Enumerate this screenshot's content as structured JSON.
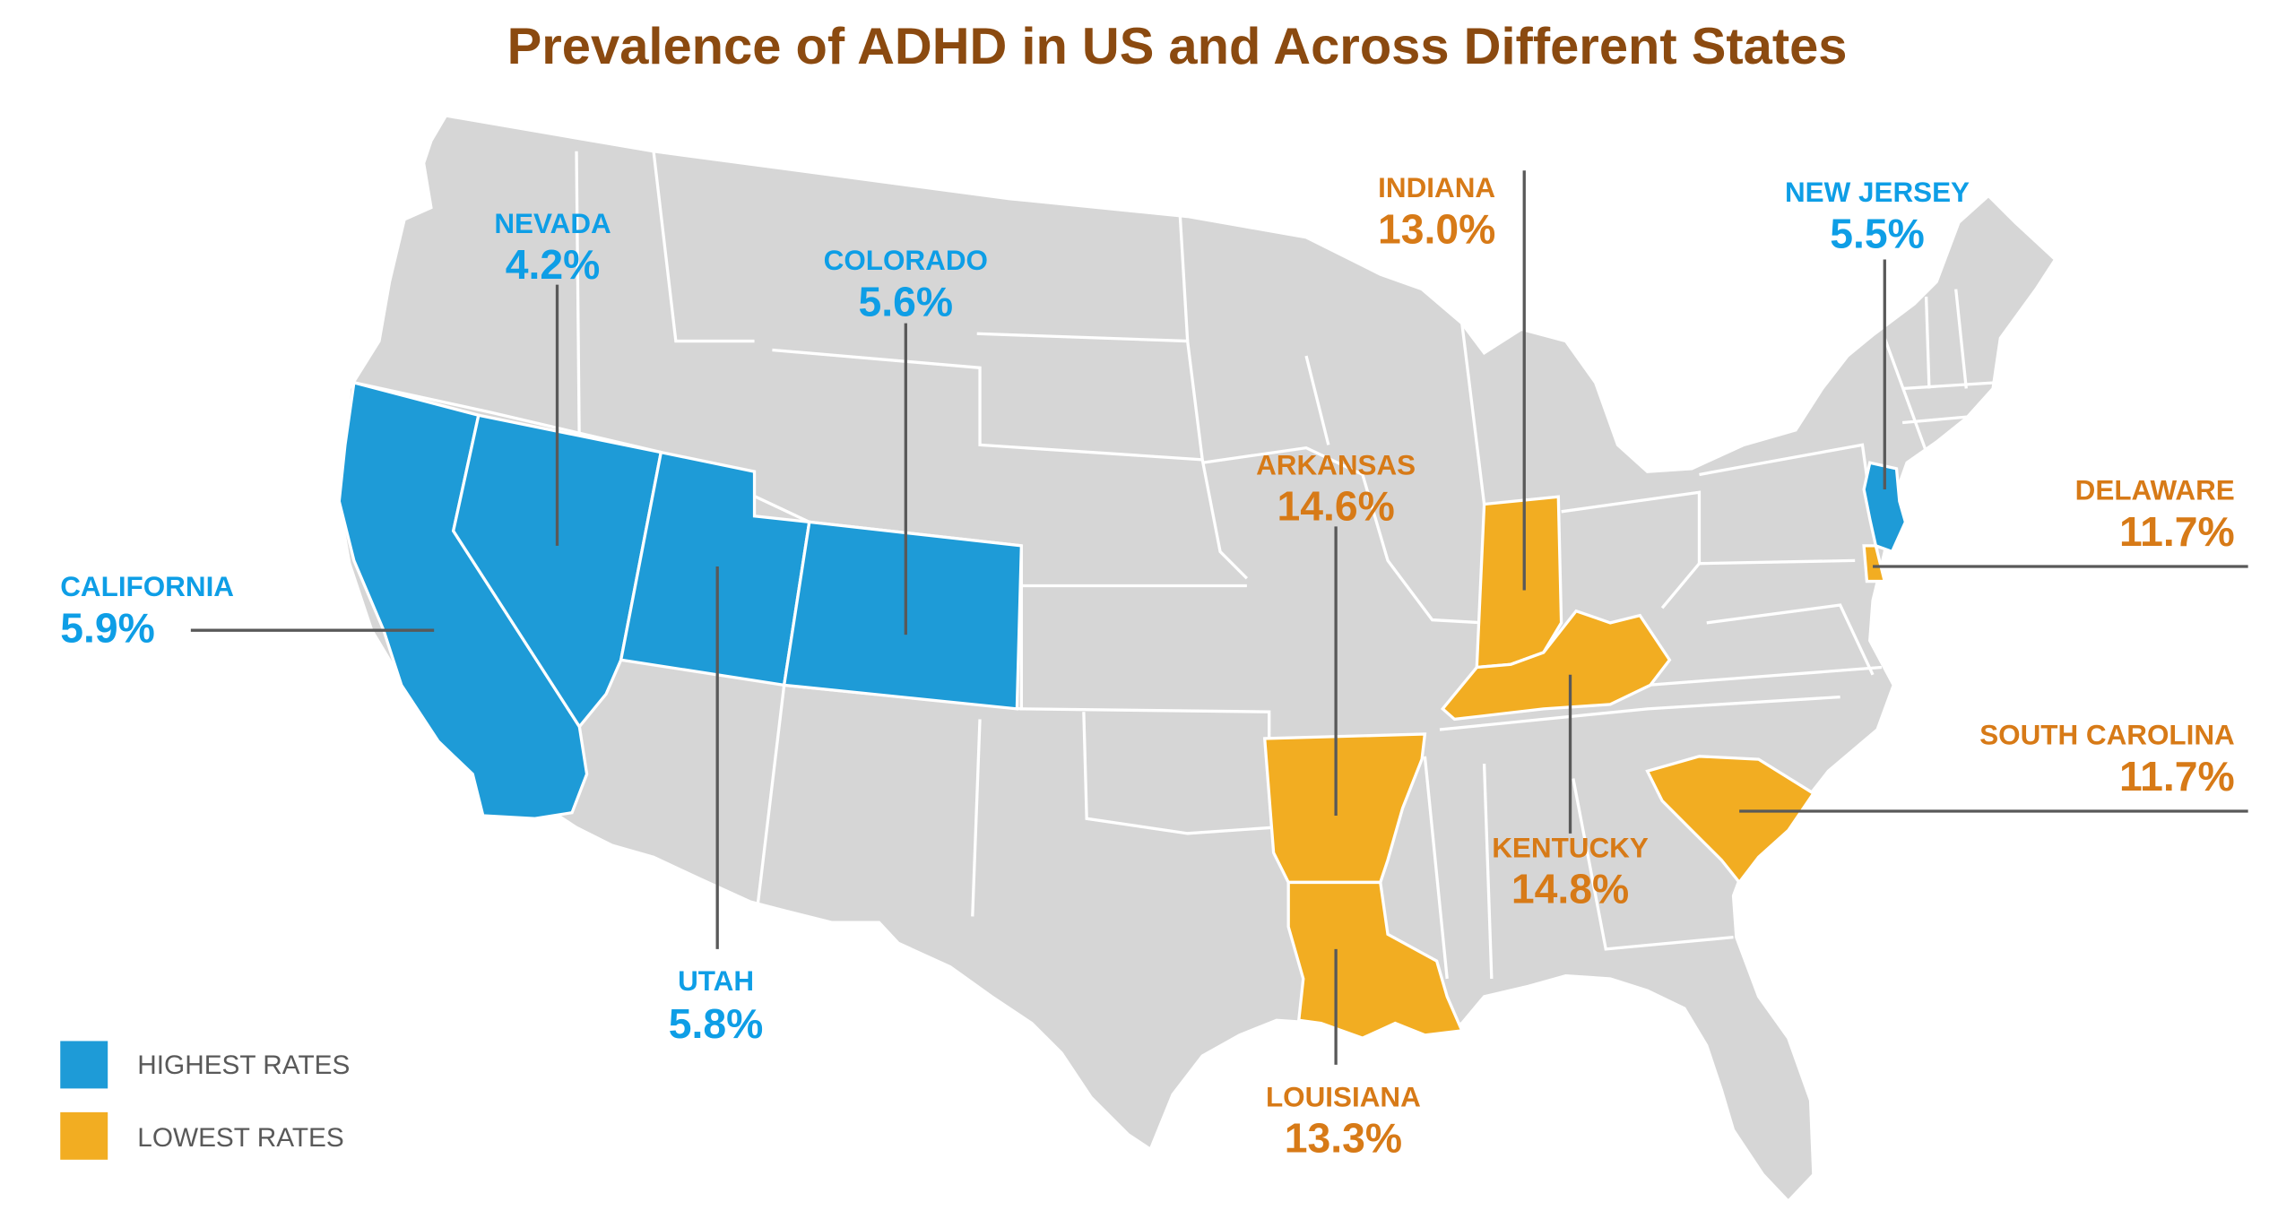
{
  "title": "Prevalence of ADHD in US and Across Different States",
  "colors": {
    "title": "#8b4a10",
    "highest": "#1e9bd7",
    "highest_text": "#0e9ee6",
    "lowest": "#f2ad22",
    "lowest_text": "#d77a17",
    "base_state": "#d6d6d6",
    "border": "#ffffff",
    "leader_line": "#595959",
    "legend_text": "#595959"
  },
  "legend": [
    {
      "label": "HIGHEST RATES",
      "group": "highest"
    },
    {
      "label": "LOWEST RATES",
      "group": "lowest"
    }
  ],
  "states": [
    {
      "key": "california",
      "name": "CALIFORNIA",
      "rate": "5.9%",
      "group": "highest"
    },
    {
      "key": "nevada",
      "name": "NEVADA",
      "rate": "4.2%",
      "group": "highest"
    },
    {
      "key": "utah",
      "name": "UTAH",
      "rate": "5.8%",
      "group": "highest"
    },
    {
      "key": "colorado",
      "name": "COLORADO",
      "rate": "5.6%",
      "group": "highest"
    },
    {
      "key": "new_jersey",
      "name": "NEW JERSEY",
      "rate": "5.5%",
      "group": "highest"
    },
    {
      "key": "indiana",
      "name": "INDIANA",
      "rate": "13.0%",
      "group": "lowest"
    },
    {
      "key": "arkansas",
      "name": "ARKANSAS",
      "rate": "14.6%",
      "group": "lowest"
    },
    {
      "key": "kentucky",
      "name": "KENTUCKY",
      "rate": "14.8%",
      "group": "lowest"
    },
    {
      "key": "louisiana",
      "name": "LOUISIANA",
      "rate": "13.3%",
      "group": "lowest"
    },
    {
      "key": "delaware",
      "name": "DELAWARE",
      "rate": "11.7%",
      "group": "lowest"
    },
    {
      "key": "south_carolina",
      "name": "SOUTH CAROLINA",
      "rate": "11.7%",
      "group": "lowest"
    }
  ]
}
